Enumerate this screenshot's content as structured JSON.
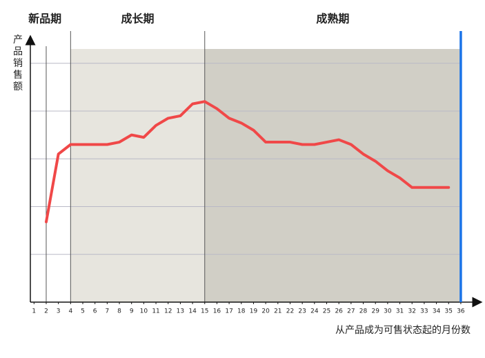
{
  "chart_data": {
    "type": "line",
    "ylabel": "产品销售额",
    "xlabel": "从产品成为可售状态起的月份数",
    "phases": [
      {
        "name": "新品期",
        "start": 2,
        "end": 4,
        "color": "#ffffff"
      },
      {
        "name": "成长期",
        "start": 4,
        "end": 15,
        "color": "#e7e5de"
      },
      {
        "name": "成熟期",
        "start": 15,
        "end": 36,
        "color": "#d1cfc6"
      }
    ],
    "x": [
      2,
      3,
      4,
      5,
      6,
      7,
      8,
      9,
      10,
      11,
      12,
      13,
      14,
      15,
      16,
      17,
      18,
      19,
      20,
      21,
      22,
      23,
      24,
      25,
      26,
      27,
      28,
      29,
      30,
      31,
      32,
      33,
      34,
      35
    ],
    "series": [
      {
        "color": "#f04848",
        "values": [
          1.68,
          3.1,
          3.3,
          3.3,
          3.3,
          3.3,
          3.35,
          3.5,
          3.45,
          3.7,
          3.85,
          3.9,
          4.15,
          4.2,
          4.05,
          3.85,
          3.75,
          3.6,
          3.35,
          3.35,
          3.35,
          3.3,
          3.3,
          3.35,
          3.4,
          3.3,
          3.1,
          2.95,
          2.75,
          2.6,
          2.4,
          2.4,
          2.4,
          2.4
        ]
      }
    ],
    "xlim": [
      0.7,
      36.4
    ],
    "xticks": [
      1,
      2,
      3,
      4,
      5,
      6,
      7,
      8,
      9,
      10,
      11,
      12,
      13,
      14,
      15,
      16,
      17,
      18,
      19,
      20,
      21,
      22,
      23,
      24,
      25,
      26,
      27,
      28,
      29,
      30,
      31,
      32,
      33,
      34,
      35,
      36
    ],
    "ylim": [
      0,
      5.3
    ],
    "ygrid": [
      1,
      2,
      3,
      4,
      5
    ],
    "highlight_x": 36,
    "highlight_color": "#1a73e8"
  }
}
